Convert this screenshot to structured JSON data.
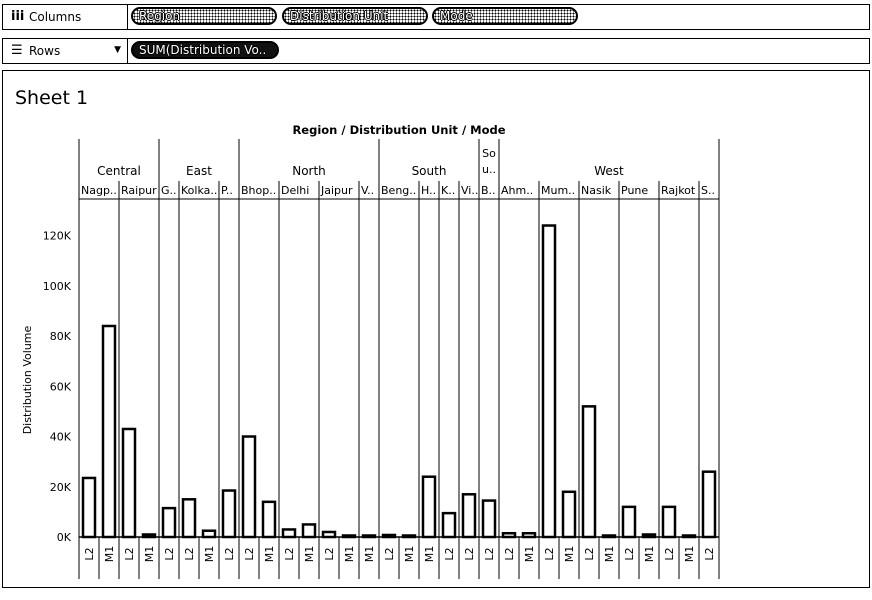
{
  "columns_shelf": {
    "label": "Columns",
    "icon": "columns-icon",
    "pills": [
      "Region",
      "Distribution Unit",
      "Mode"
    ]
  },
  "rows_shelf": {
    "label": "Rows",
    "icon": "rows-icon",
    "pills": [
      "SUM(Distribution Vo.."
    ]
  },
  "sheet": {
    "title": "Sheet 1"
  },
  "chart_data": {
    "type": "bar",
    "title": "Region / Distribution Unit / Mode",
    "ylabel": "Distribution Volume",
    "ylim": [
      0,
      125000
    ],
    "y_ticks": [
      0,
      20000,
      40000,
      60000,
      80000,
      100000,
      120000
    ],
    "y_tick_labels": [
      "0K",
      "20K",
      "40K",
      "60K",
      "80K",
      "100K",
      "120K"
    ],
    "regions": [
      {
        "name": "Central",
        "units": [
          {
            "name": "Nagp..",
            "modes": [
              {
                "mode": "L2",
                "value": 23500
              },
              {
                "mode": "M1",
                "value": 84000
              }
            ]
          },
          {
            "name": "Raipur",
            "modes": [
              {
                "mode": "L2",
                "value": 43000
              },
              {
                "mode": "M1",
                "value": 1000
              }
            ]
          }
        ]
      },
      {
        "name": "East",
        "units": [
          {
            "name": "G..",
            "modes": [
              {
                "mode": "L2",
                "value": 11500
              }
            ]
          },
          {
            "name": "Kolka..",
            "modes": [
              {
                "mode": "L2",
                "value": 15000
              },
              {
                "mode": "M1",
                "value": 2500
              }
            ]
          },
          {
            "name": "P..",
            "modes": [
              {
                "mode": "L2",
                "value": 18500
              }
            ]
          }
        ]
      },
      {
        "name": "North",
        "units": [
          {
            "name": "Bhop..",
            "modes": [
              {
                "mode": "L2",
                "value": 40000
              },
              {
                "mode": "M1",
                "value": 14000
              }
            ]
          },
          {
            "name": "Delhi",
            "modes": [
              {
                "mode": "L2",
                "value": 3000
              },
              {
                "mode": "M1",
                "value": 5000
              }
            ]
          },
          {
            "name": "Jaipur",
            "modes": [
              {
                "mode": "L2",
                "value": 2000
              },
              {
                "mode": "M1",
                "value": 500
              }
            ]
          },
          {
            "name": "V..",
            "modes": [
              {
                "mode": "M1",
                "value": 300
              }
            ]
          }
        ]
      },
      {
        "name": "South",
        "units": [
          {
            "name": "Beng..",
            "modes": [
              {
                "mode": "L2",
                "value": 800
              },
              {
                "mode": "M1",
                "value": 200
              }
            ]
          },
          {
            "name": "H..",
            "modes": [
              {
                "mode": "M1",
                "value": 24000
              }
            ]
          },
          {
            "name": "K..",
            "modes": [
              {
                "mode": "L2",
                "value": 9500
              }
            ]
          },
          {
            "name": "Vi..",
            "modes": [
              {
                "mode": "L2",
                "value": 17000
              }
            ]
          }
        ]
      },
      {
        "name": "So\nu..",
        "units": [
          {
            "name": "B..",
            "modes": [
              {
                "mode": "L2",
                "value": 14500
              }
            ]
          }
        ]
      },
      {
        "name": "West",
        "units": [
          {
            "name": "Ahm..",
            "modes": [
              {
                "mode": "L2",
                "value": 1500
              },
              {
                "mode": "M1",
                "value": 1500
              }
            ]
          },
          {
            "name": "Mum..",
            "modes": [
              {
                "mode": "L2",
                "value": 124000
              },
              {
                "mode": "M1",
                "value": 18000
              }
            ]
          },
          {
            "name": "Nasik",
            "modes": [
              {
                "mode": "L2",
                "value": 52000
              },
              {
                "mode": "M1",
                "value": 500
              }
            ]
          },
          {
            "name": "Pune",
            "modes": [
              {
                "mode": "L2",
                "value": 12000
              },
              {
                "mode": "M1",
                "value": 1000
              }
            ]
          },
          {
            "name": "Rajkot",
            "modes": [
              {
                "mode": "L2",
                "value": 12000
              },
              {
                "mode": "M1",
                "value": 500
              }
            ]
          },
          {
            "name": "S..",
            "modes": [
              {
                "mode": "L2",
                "value": 26000
              }
            ]
          }
        ]
      }
    ]
  }
}
